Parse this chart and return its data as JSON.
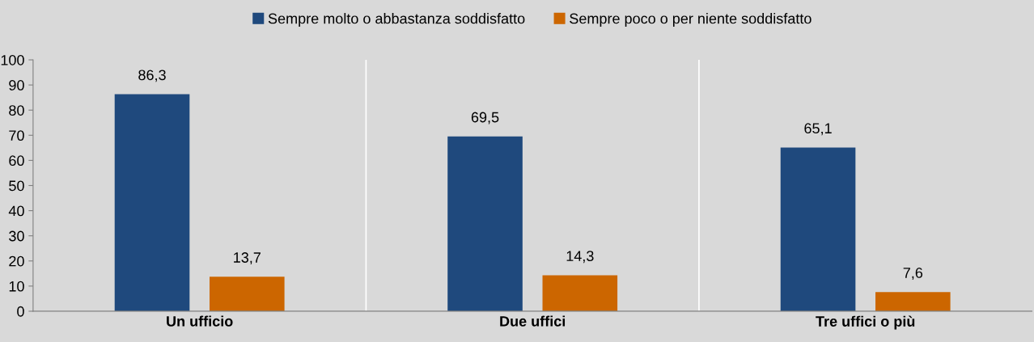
{
  "chart_data": {
    "type": "bar",
    "categories": [
      "Un ufficio",
      "Due uffici",
      "Tre uffici o più"
    ],
    "series": [
      {
        "name": "Sempre molto o abbastanza soddisfatto",
        "color": "#1f497d",
        "values": [
          86.3,
          69.5,
          65.1
        ]
      },
      {
        "name": "Sempre poco o per niente soddisfatto",
        "color": "#cc6600",
        "values": [
          13.7,
          14.3,
          7.6
        ]
      }
    ],
    "value_labels": [
      [
        "86,3",
        "69,5",
        "65,1"
      ],
      [
        "13,7",
        "14,3",
        "7,6"
      ]
    ],
    "ylim": [
      0,
      100
    ],
    "yticks": [
      0,
      10,
      20,
      30,
      40,
      50,
      60,
      70,
      80,
      90,
      100
    ],
    "grid": "x",
    "legend": "top"
  }
}
